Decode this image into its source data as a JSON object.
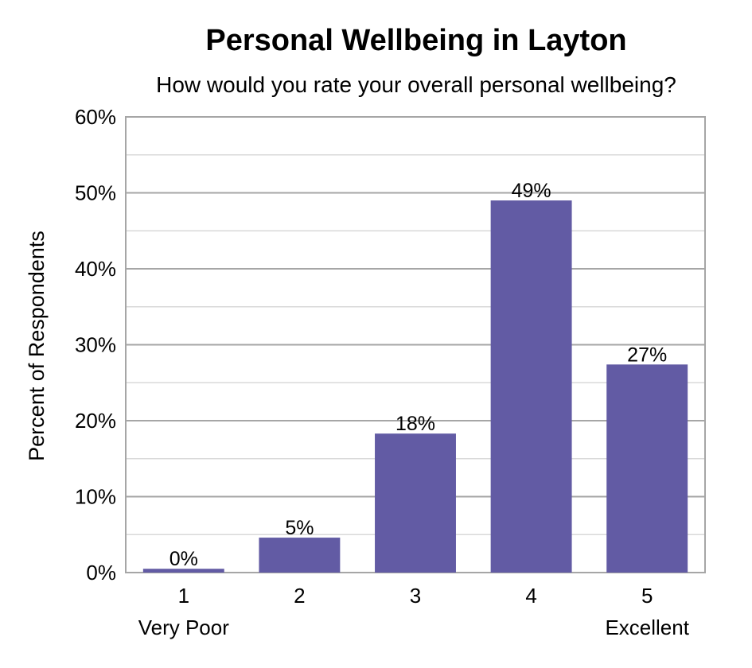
{
  "chart_data": {
    "type": "bar",
    "title": "Personal Wellbeing in Layton",
    "subtitle": "How would you rate your overall personal wellbeing?",
    "xlabel": "",
    "ylabel": "Percent of Respondents",
    "categories": [
      "1",
      "2",
      "3",
      "4",
      "5"
    ],
    "category_sublabels": [
      "Very Poor",
      "",
      "",
      "",
      "Excellent"
    ],
    "values": [
      0.5,
      4.6,
      18.3,
      49.0,
      27.4
    ],
    "data_labels": [
      "0%",
      "5%",
      "18%",
      "49%",
      "27%"
    ],
    "ylim": [
      0,
      60
    ],
    "yticks": [
      0,
      10,
      20,
      30,
      40,
      50,
      60
    ],
    "ytick_labels": [
      "0%",
      "10%",
      "20%",
      "30%",
      "40%",
      "50%",
      "60%"
    ],
    "grid": true,
    "legend": "none",
    "colors": {
      "bar": "#625BA4",
      "major_grid": "#A6A6A6",
      "minor_grid": "#D9D9D9",
      "plot_border": "#A6A6A6"
    }
  }
}
